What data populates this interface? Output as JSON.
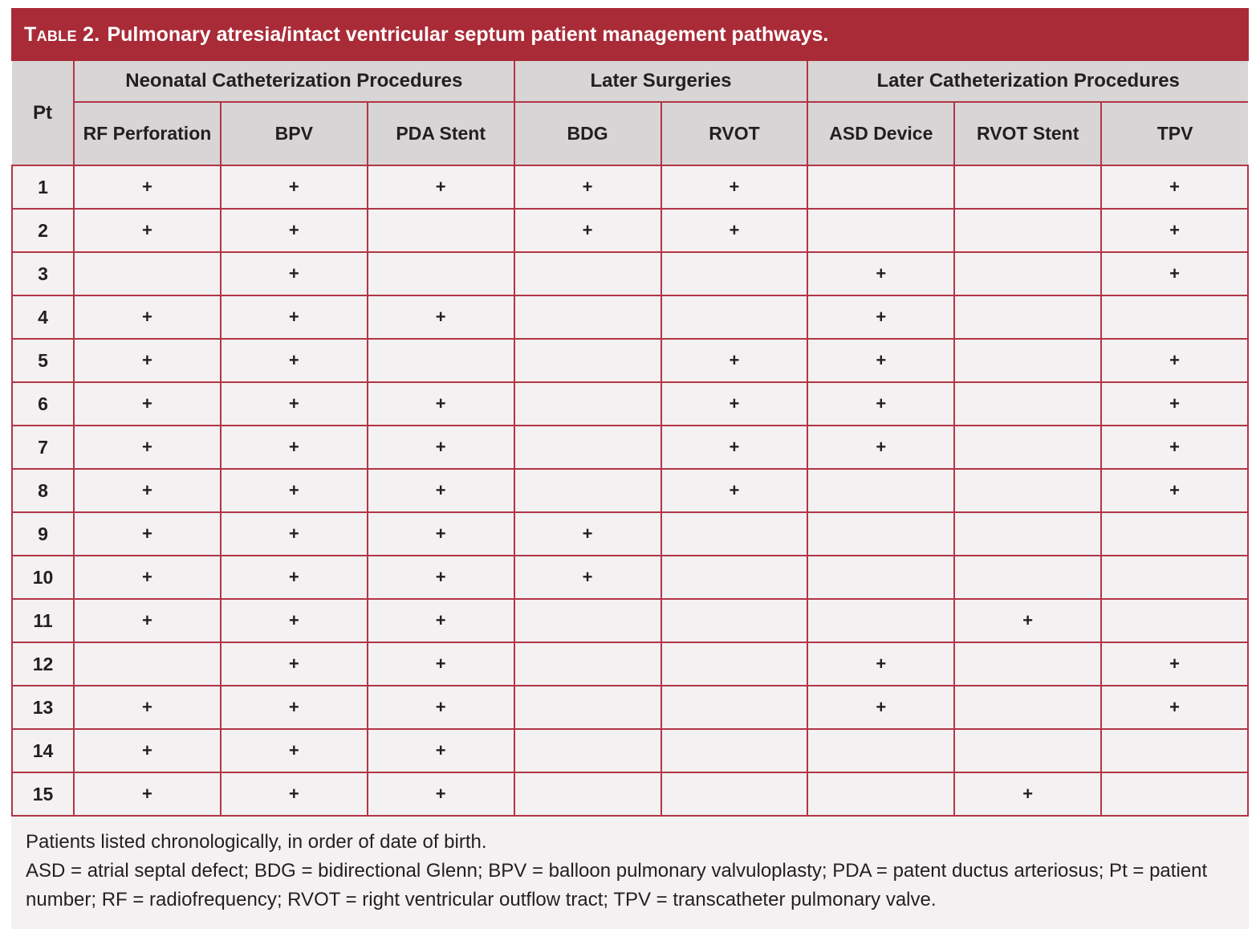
{
  "colors": {
    "accent-red": "#A92B37",
    "grid-red": "#B23546",
    "header-gray": "#D7D5D6",
    "row-bg": "#F3F1F1",
    "text-dark": "#231F20"
  },
  "table": {
    "label": "Table 2.",
    "title": "Pulmonary atresia/intact ventricular septum patient management pathways.",
    "pt_header": "Pt",
    "column_groups": [
      {
        "label": "Neonatal Catheterization Procedures"
      },
      {
        "label": "Later Surgeries"
      },
      {
        "label": "Later Catheterization Procedures"
      }
    ],
    "columns": [
      "RF Perforation",
      "BPV",
      "PDA Stent",
      "BDG",
      "RVOT",
      "ASD Device",
      "RVOT Stent",
      "TPV"
    ],
    "rows": [
      {
        "pt": "1",
        "values": [
          "+",
          "+",
          "+",
          "+",
          "+",
          "",
          "",
          "+"
        ]
      },
      {
        "pt": "2",
        "values": [
          "+",
          "+",
          "",
          "+",
          "+",
          "",
          "",
          "+"
        ]
      },
      {
        "pt": "3",
        "values": [
          "",
          "+",
          "",
          "",
          "",
          "+",
          "",
          "+"
        ]
      },
      {
        "pt": "4",
        "values": [
          "+",
          "+",
          "+",
          "",
          "",
          "+",
          "",
          ""
        ]
      },
      {
        "pt": "5",
        "values": [
          "+",
          "+",
          "",
          "",
          "+",
          "+",
          "",
          "+"
        ]
      },
      {
        "pt": "6",
        "values": [
          "+",
          "+",
          "+",
          "",
          "+",
          "+",
          "",
          "+"
        ]
      },
      {
        "pt": "7",
        "values": [
          "+",
          "+",
          "+",
          "",
          "+",
          "+",
          "",
          "+"
        ]
      },
      {
        "pt": "8",
        "values": [
          "+",
          "+",
          "+",
          "",
          "+",
          "",
          "",
          "+"
        ]
      },
      {
        "pt": "9",
        "values": [
          "+",
          "+",
          "+",
          "+",
          "",
          "",
          "",
          ""
        ]
      },
      {
        "pt": "10",
        "values": [
          "+",
          "+",
          "+",
          "+",
          "",
          "",
          "",
          ""
        ]
      },
      {
        "pt": "11",
        "values": [
          "+",
          "+",
          "+",
          "",
          "",
          "",
          "+",
          ""
        ]
      },
      {
        "pt": "12",
        "values": [
          "",
          "+",
          "+",
          "",
          "",
          "+",
          "",
          "+"
        ]
      },
      {
        "pt": "13",
        "values": [
          "+",
          "+",
          "+",
          "",
          "",
          "+",
          "",
          "+"
        ]
      },
      {
        "pt": "14",
        "values": [
          "+",
          "+",
          "+",
          "",
          "",
          "",
          "",
          ""
        ]
      },
      {
        "pt": "15",
        "values": [
          "+",
          "+",
          "+",
          "",
          "",
          "",
          "+",
          ""
        ]
      }
    ],
    "footnotes": {
      "order_note": "Patients listed chronologically, in order of date of birth.",
      "abbreviations": "ASD = atrial septal defect; BDG = bidirectional Glenn; BPV = balloon pulmonary valvuloplasty; PDA = patent ductus arteriosus; Pt = patient number; RF = radiofrequency; RVOT = right ventricular outflow tract; TPV = transcatheter pulmonary valve."
    }
  }
}
